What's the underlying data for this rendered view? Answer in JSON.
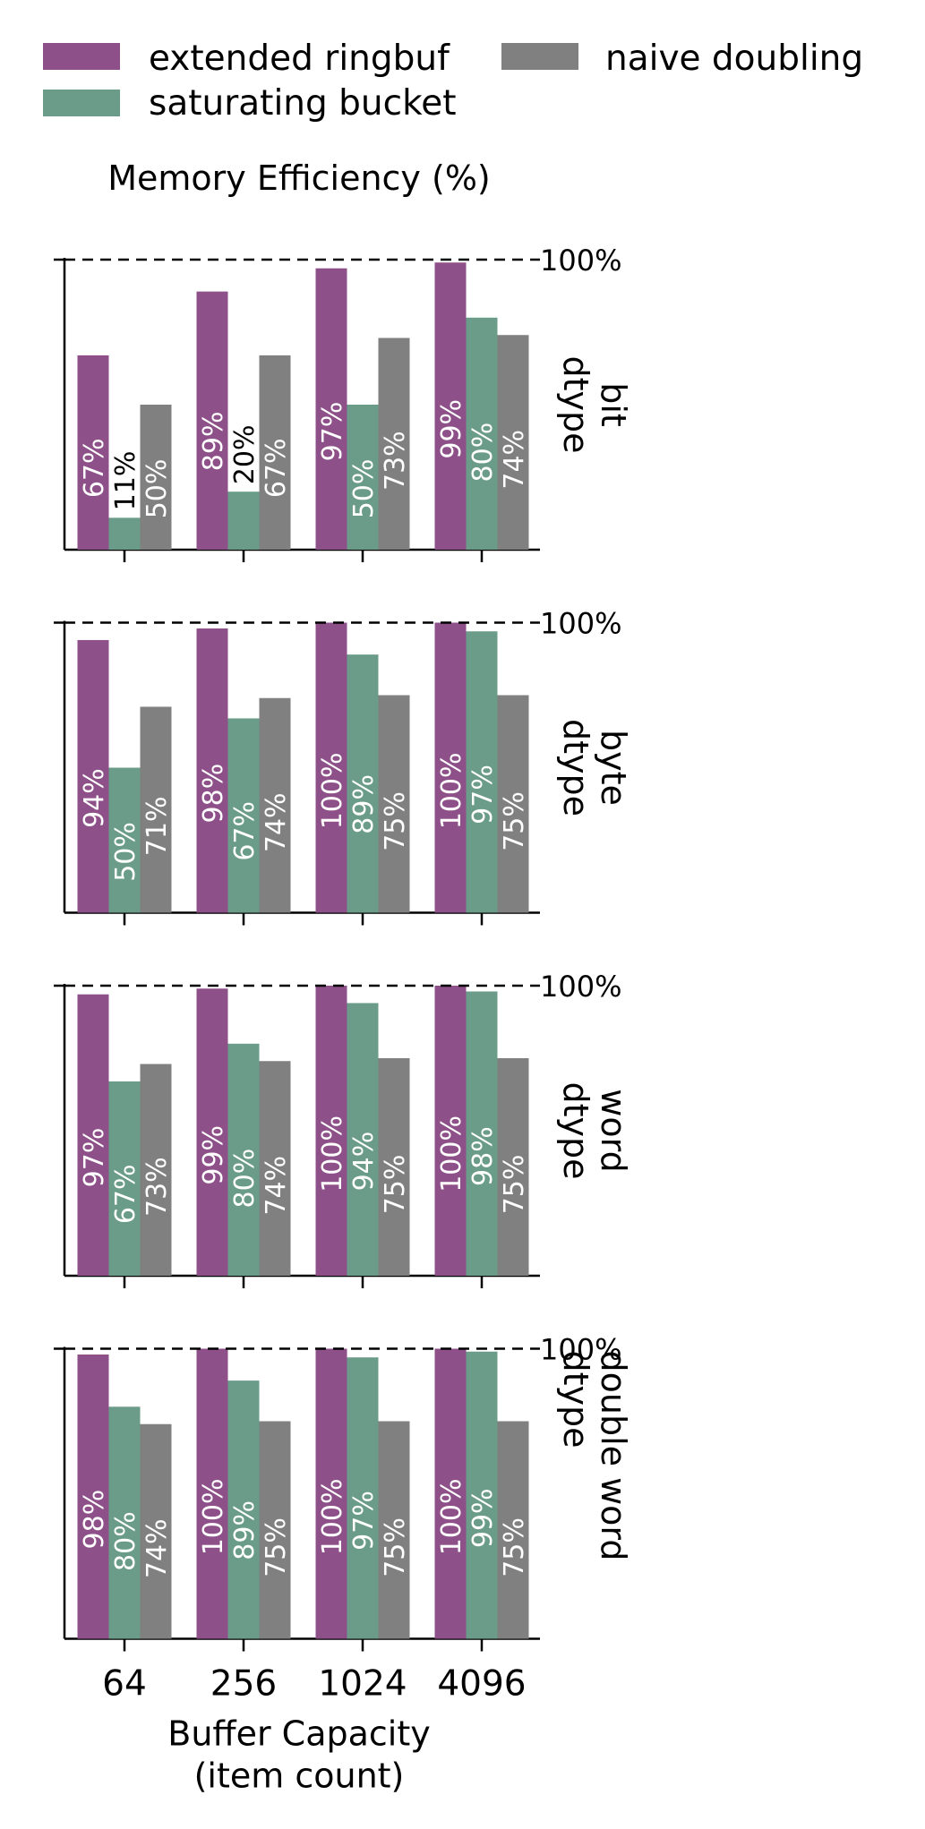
{
  "legend": {
    "placement": "top",
    "entries": [
      {
        "label": "extended ringbuf",
        "color": "#8e5089"
      },
      {
        "label": "saturating bucket",
        "color": "#6a9c89"
      },
      {
        "label": "naive doubling",
        "color": "#808080"
      }
    ]
  },
  "chart_data": {
    "type": "bar",
    "title": "Memory Efficiency (%)",
    "xlabel": [
      "Buffer Capacity",
      "(item count)"
    ],
    "categories": [
      "64",
      "256",
      "1024",
      "4096"
    ],
    "ylim": [
      0,
      100
    ],
    "reference_line": {
      "value": 100,
      "label": "100%",
      "style": "dashed"
    },
    "grid": false,
    "panels": [
      {
        "label": [
          "bit",
          "dtype"
        ],
        "series": [
          {
            "name": "extended ringbuf",
            "values": [
              67,
              89,
              97,
              99
            ],
            "labels": [
              "67%",
              "89%",
              "97%",
              "99%"
            ]
          },
          {
            "name": "saturating bucket",
            "values": [
              11,
              20,
              50,
              80
            ],
            "labels": [
              "11%",
              "20%",
              "50%",
              "80%"
            ]
          },
          {
            "name": "naive doubling",
            "values": [
              50,
              67,
              73,
              74
            ],
            "labels": [
              "50%",
              "67%",
              "73%",
              "74%"
            ]
          }
        ]
      },
      {
        "label": [
          "byte",
          "dtype"
        ],
        "series": [
          {
            "name": "extended ringbuf",
            "values": [
              94,
              98,
              100,
              100
            ],
            "labels": [
              "94%",
              "98%",
              "100%",
              "100%"
            ]
          },
          {
            "name": "saturating bucket",
            "values": [
              50,
              67,
              89,
              97
            ],
            "labels": [
              "50%",
              "67%",
              "89%",
              "97%"
            ]
          },
          {
            "name": "naive doubling",
            "values": [
              71,
              74,
              75,
              75
            ],
            "labels": [
              "71%",
              "74%",
              "75%",
              "75%"
            ]
          }
        ]
      },
      {
        "label": [
          "word",
          "dtype"
        ],
        "series": [
          {
            "name": "extended ringbuf",
            "values": [
              97,
              99,
              100,
              100
            ],
            "labels": [
              "97%",
              "99%",
              "100%",
              "100%"
            ]
          },
          {
            "name": "saturating bucket",
            "values": [
              67,
              80,
              94,
              98
            ],
            "labels": [
              "67%",
              "80%",
              "94%",
              "98%"
            ]
          },
          {
            "name": "naive doubling",
            "values": [
              73,
              74,
              75,
              75
            ],
            "labels": [
              "73%",
              "74%",
              "75%",
              "75%"
            ]
          }
        ]
      },
      {
        "label": [
          "double word",
          "dtype"
        ],
        "series": [
          {
            "name": "extended ringbuf",
            "values": [
              98,
              100,
              100,
              100
            ],
            "labels": [
              "98%",
              "100%",
              "100%",
              "100%"
            ]
          },
          {
            "name": "saturating bucket",
            "values": [
              80,
              89,
              97,
              99
            ],
            "labels": [
              "80%",
              "89%",
              "97%",
              "99%"
            ]
          },
          {
            "name": "naive doubling",
            "values": [
              74,
              75,
              75,
              75
            ],
            "labels": [
              "74%",
              "75%",
              "75%",
              "75%"
            ]
          }
        ]
      }
    ]
  }
}
